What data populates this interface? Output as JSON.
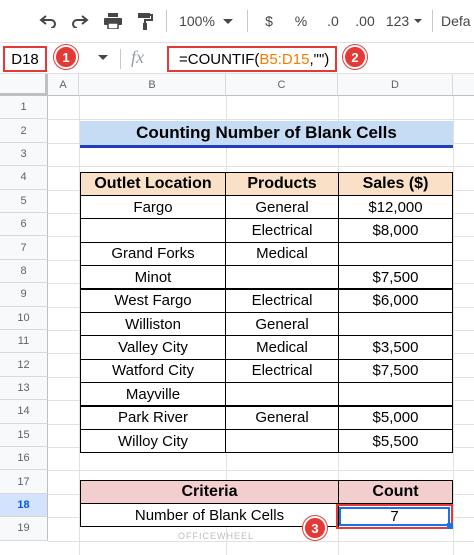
{
  "toolbar": {
    "zoom": "100%",
    "currency": "$",
    "percent": "%",
    "decrease_decimal": ".0",
    "increase_decimal": ".00",
    "more_formats": "123",
    "font": "Defa"
  },
  "formula_bar": {
    "name_box": "D18",
    "fx": "fx",
    "formula_prefix": "=COUNTIF(",
    "formula_ref": "B5:D15",
    "formula_suffix": ",\"\")"
  },
  "badges": {
    "one": "1",
    "two": "2",
    "three": "3"
  },
  "columns": [
    "A",
    "B",
    "C",
    "D"
  ],
  "rows": [
    "1",
    "2",
    "3",
    "4",
    "5",
    "6",
    "7",
    "8",
    "9",
    "10",
    "11",
    "12",
    "13",
    "14",
    "15",
    "16",
    "17",
    "18",
    "19"
  ],
  "title": "Counting Number of Blank Cells",
  "table": {
    "headers": [
      "Outlet Location",
      "Products",
      "Sales ($)"
    ],
    "rows": [
      [
        "Fargo",
        "General",
        "$12,000"
      ],
      [
        "",
        "Electrical",
        "$8,000"
      ],
      [
        "Grand Forks",
        "Medical",
        ""
      ],
      [
        "Minot",
        "",
        "$7,500"
      ],
      [
        "West Fargo",
        "Electrical",
        "$6,000"
      ],
      [
        "Williston",
        "General",
        ""
      ],
      [
        "Valley City",
        "Medical",
        "$3,500"
      ],
      [
        "Watford City",
        "Electrical",
        "$7,500"
      ],
      [
        "Mayville",
        "",
        ""
      ],
      [
        "Park River",
        "General",
        "$5,000"
      ],
      [
        "Willoy City",
        "",
        "$5,500"
      ]
    ]
  },
  "summary": {
    "criteria_header": "Criteria",
    "count_header": "Count",
    "criteria_label": "Number of Blank Cells",
    "count_value": "7"
  },
  "watermark": "OFFICEWHEEL",
  "colors": {
    "accent_red": "#e53935",
    "selection_blue": "#1a73e8",
    "title_bg": "#c6dbf4",
    "header_bg": "#fbe0c8",
    "summary_header_bg": "#f3cece"
  }
}
